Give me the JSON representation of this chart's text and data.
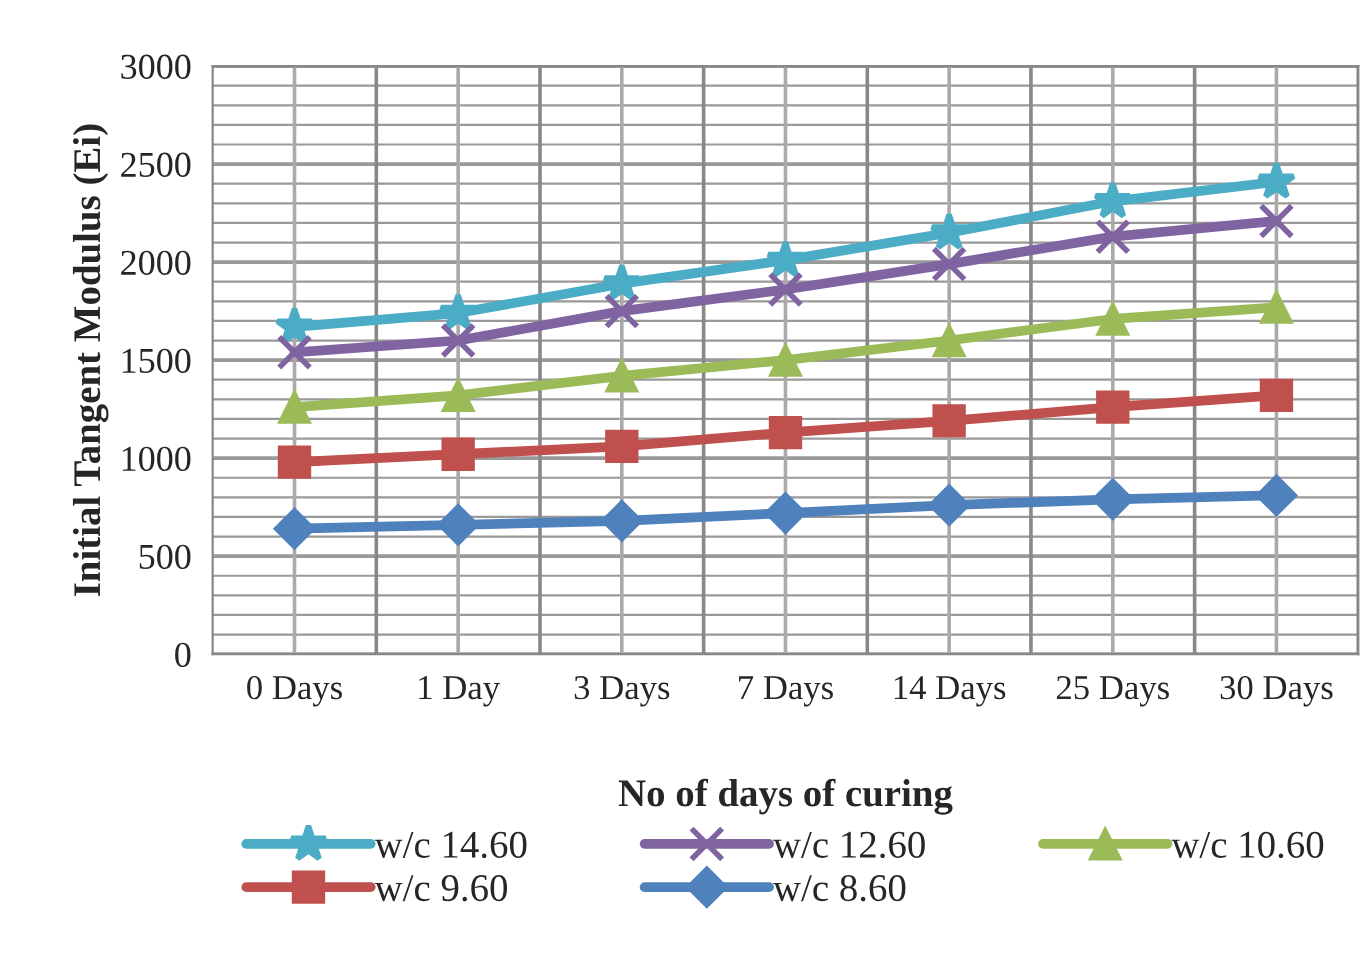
{
  "chart_data": {
    "type": "line",
    "xlabel": "No of days of curing",
    "ylabel": "Initial Tangent Modulus (Ei)",
    "categories": [
      "0 Days",
      "1 Day",
      "3 Days",
      "7 Days",
      "14 Days",
      "25 Days",
      "30 Days"
    ],
    "series": [
      {
        "name": "w/c 14.60",
        "color": "#4bacc6",
        "marker": "star",
        "values": [
          1670,
          1740,
          1890,
          2010,
          2150,
          2310,
          2410
        ]
      },
      {
        "name": "w/c 12.60",
        "color": "#8064a2",
        "marker": "cross",
        "values": [
          1540,
          1600,
          1750,
          1860,
          1990,
          2130,
          2210
        ]
      },
      {
        "name": "w/c 10.60",
        "color": "#9bbb59",
        "marker": "triangle",
        "values": [
          1260,
          1320,
          1420,
          1500,
          1600,
          1710,
          1770
        ]
      },
      {
        "name": "w/c 9.60",
        "color": "#c0504d",
        "marker": "square",
        "values": [
          980,
          1020,
          1060,
          1130,
          1190,
          1260,
          1320
        ]
      },
      {
        "name": "w/c 8.60",
        "color": "#4f81bd",
        "marker": "diamond",
        "values": [
          640,
          660,
          680,
          720,
          760,
          790,
          810
        ]
      }
    ],
    "ylim": [
      0,
      3000
    ],
    "yticks": [
      0,
      500,
      1000,
      1500,
      2000,
      2500,
      3000
    ],
    "grid": true,
    "legend": "bottom",
    "line_style": "solid"
  }
}
